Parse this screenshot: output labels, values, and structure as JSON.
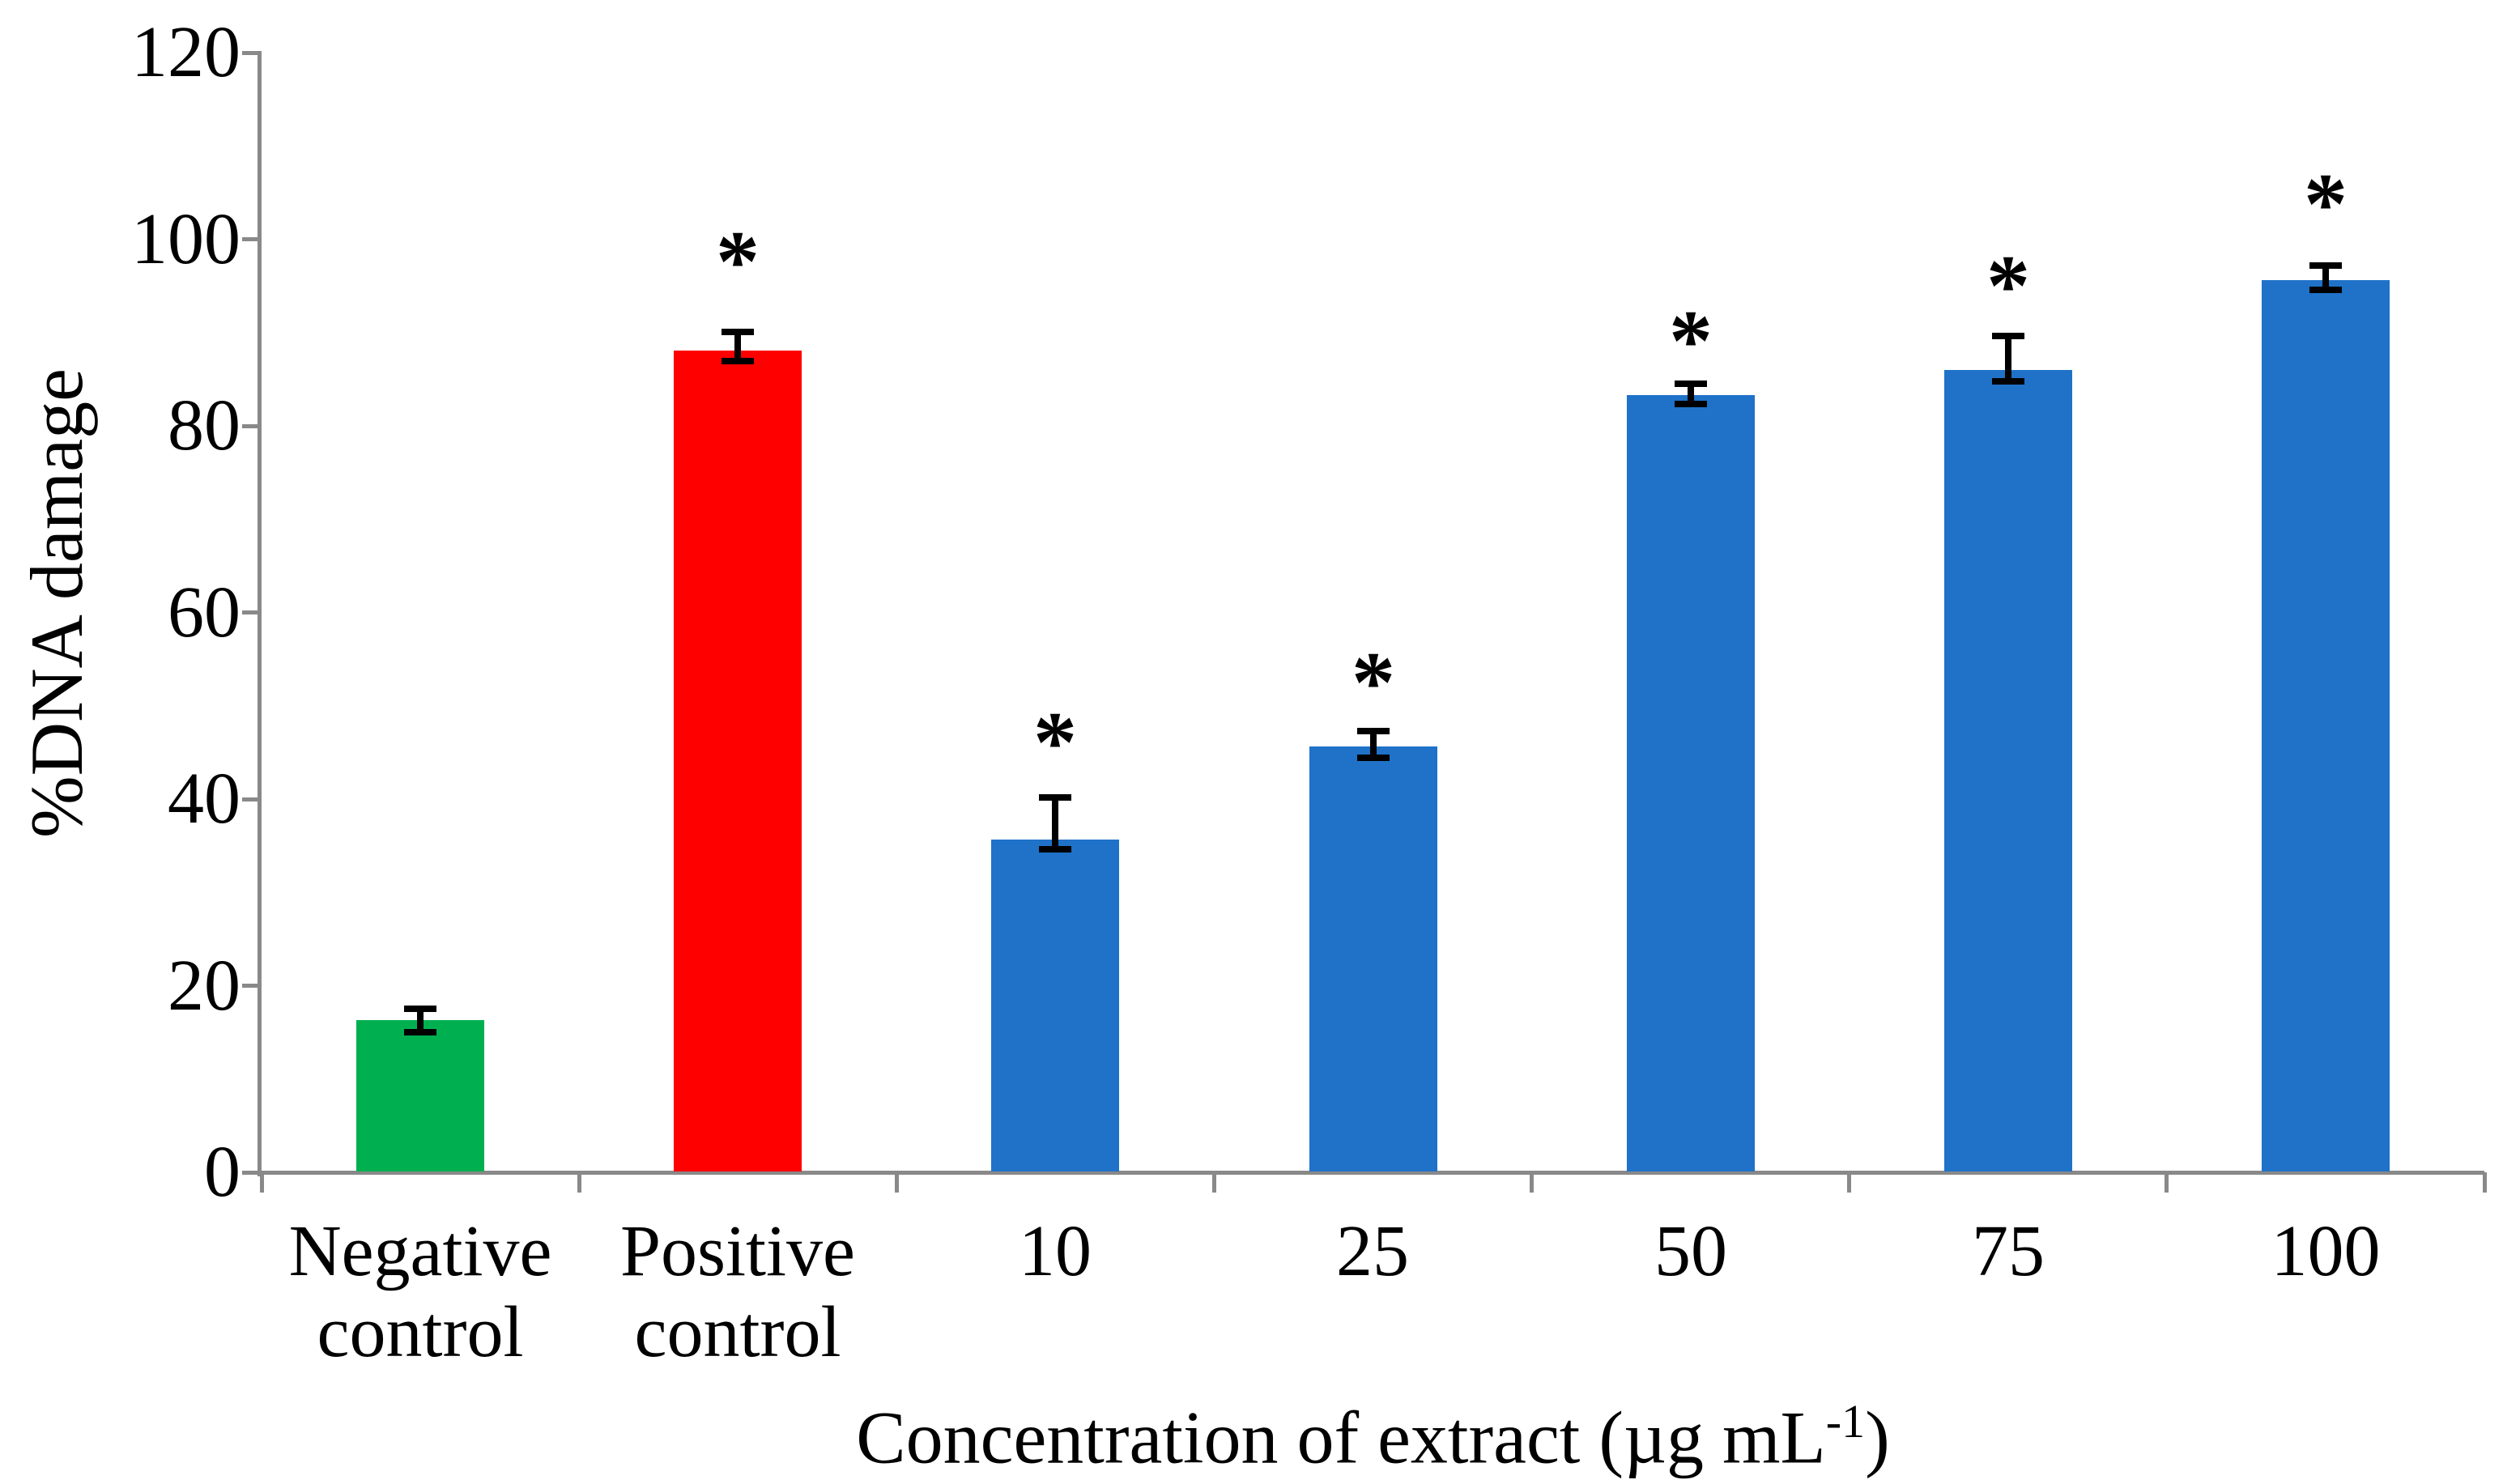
{
  "figure": {
    "background": "#ffffff",
    "axis_color": "#898989",
    "error_bar_color": "#000000",
    "significance_marker": "*"
  },
  "chart_data": {
    "type": "bar",
    "title": "",
    "xlabel": "Concentration of extract (µg mL-1)",
    "xlabel_prefix": "Concentration of extract (µg mL",
    "xlabel_sup": "-1",
    "xlabel_suffix": ")",
    "ylabel": "%DNA damage",
    "ylim": [
      0,
      120
    ],
    "yticks": [
      0,
      20,
      40,
      60,
      80,
      100,
      120
    ],
    "grid": false,
    "legend_position": "none",
    "categories": [
      "Negative control",
      "Positive control",
      "10",
      "25",
      "50",
      "75",
      "100"
    ],
    "category_label_lines": [
      [
        "Negative",
        "control"
      ],
      [
        "Positive",
        "control"
      ],
      [
        "10"
      ],
      [
        "25"
      ],
      [
        "50"
      ],
      [
        "75"
      ],
      [
        "100"
      ]
    ],
    "series": [
      {
        "name": "%DNA damage",
        "values": [
          16.3,
          88.1,
          35.7,
          45.6,
          83.3,
          86.0,
          95.6
        ],
        "error_whisker_low": [
          15.0,
          86.9,
          34.6,
          44.4,
          82.3,
          84.8,
          94.6
        ],
        "error_whisker_high": [
          17.5,
          90.1,
          40.2,
          47.3,
          84.5,
          89.6,
          97.2
        ],
        "bar_colors": [
          "#00B050",
          "#FF0000",
          "#1F72C8",
          "#1F72C8",
          "#1F72C8",
          "#1F72C8",
          "#1F72C8"
        ],
        "significant": [
          false,
          true,
          true,
          true,
          true,
          true,
          true
        ],
        "asterisk_y_value": [
          null,
          99.6,
          48.1,
          54.5,
          91.1,
          97.0,
          105.8
        ]
      }
    ]
  }
}
